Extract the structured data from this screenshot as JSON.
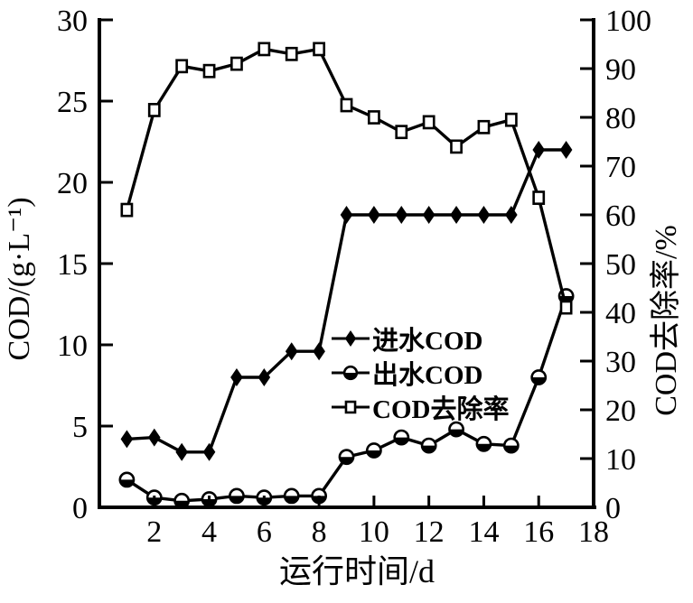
{
  "chart_data": {
    "type": "line",
    "x": [
      1,
      2,
      3,
      4,
      5,
      6,
      7,
      8,
      9,
      10,
      11,
      12,
      13,
      14,
      15,
      16,
      17
    ],
    "series": [
      {
        "id": "influent-cod",
        "name": "进水COD",
        "axis": "left",
        "marker": "diamond-filled",
        "values": [
          4.2,
          4.3,
          3.4,
          3.4,
          8.0,
          8.0,
          9.6,
          9.6,
          18.0,
          18.0,
          18.0,
          18.0,
          18.0,
          18.0,
          18.0,
          22.0,
          22.0
        ]
      },
      {
        "id": "effluent-cod",
        "name": "出水COD",
        "axis": "left",
        "marker": "circle-half",
        "values": [
          1.7,
          0.6,
          0.4,
          0.5,
          0.7,
          0.6,
          0.7,
          0.7,
          3.1,
          3.5,
          4.3,
          3.8,
          4.8,
          3.9,
          3.8,
          8.0,
          13.0
        ]
      },
      {
        "id": "cod-removal",
        "name": "COD去除率",
        "axis": "right",
        "marker": "square-open",
        "values": [
          61,
          81.5,
          90.5,
          89.5,
          91,
          94,
          93,
          94,
          82.5,
          80,
          77,
          79,
          74,
          78,
          79.5,
          63.5,
          41
        ]
      }
    ],
    "xlabel": "运行时间/d",
    "ylabel_left": "COD/(g·L⁻¹)",
    "ylabel_right": "COD去除率/%",
    "xlim": [
      0,
      18
    ],
    "xticks": [
      2,
      4,
      6,
      8,
      10,
      12,
      14,
      16,
      18
    ],
    "ylim_left": [
      0,
      30
    ],
    "yticks_left": [
      0,
      5,
      10,
      15,
      20,
      25,
      30
    ],
    "ylim_right": [
      0,
      100
    ],
    "yticks_right": [
      0,
      10,
      20,
      30,
      40,
      50,
      60,
      70,
      80,
      90,
      100
    ],
    "grid": false,
    "legend_position": "inside-right-middle",
    "colors": {
      "foreground": "#000000",
      "background": "#ffffff"
    }
  }
}
